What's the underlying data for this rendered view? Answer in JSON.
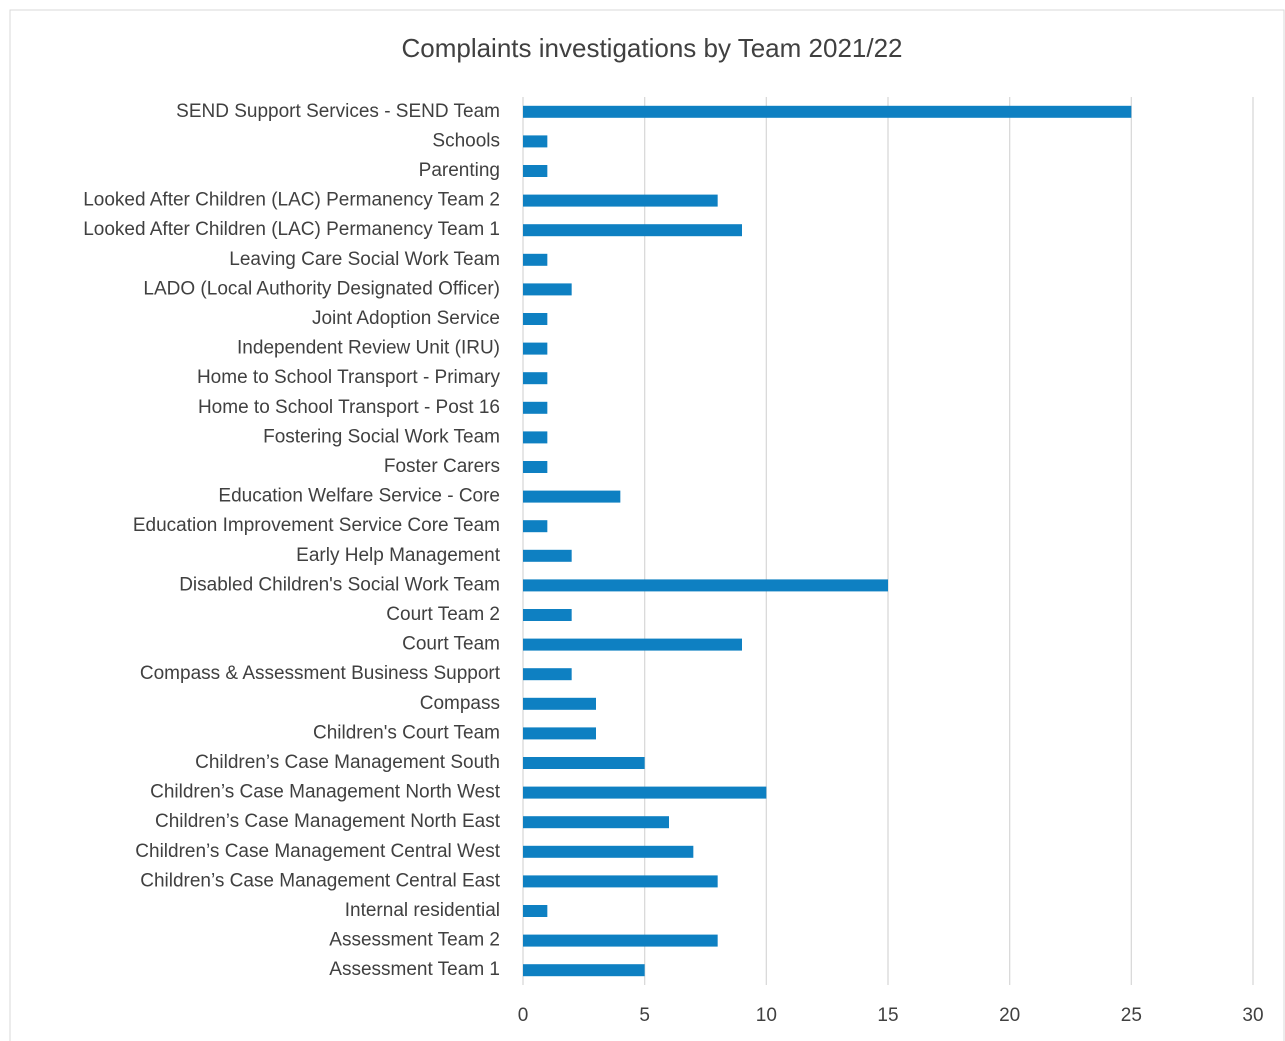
{
  "chart_data": {
    "type": "bar",
    "orientation": "horizontal",
    "title": "Complaints investigations by Team 2021/22",
    "categories": [
      "SEND Support Services - SEND Team",
      "Schools",
      "Parenting",
      "Looked After Children (LAC) Permanency Team 2",
      "Looked After Children (LAC) Permanency Team 1",
      "Leaving Care Social Work Team",
      "LADO (Local Authority Designated Officer)",
      "Joint Adoption Service",
      "Independent Review Unit (IRU)",
      "Home to School Transport - Primary",
      "Home to School Transport - Post 16",
      "Fostering Social Work Team",
      "Foster Carers",
      "Education Welfare Service - Core",
      "Education Improvement Service Core Team",
      "Early Help Management",
      "Disabled Children's Social Work Team",
      "Court Team 2",
      "Court Team",
      "Compass & Assessment Business Support",
      "Compass",
      "Children's Court Team",
      "Children’s Case Management South",
      "Children’s Case Management North West",
      "Children’s Case Management North East",
      "Children’s Case Management Central West",
      "Children’s Case Management Central East",
      "Internal residential",
      "Assessment Team 2",
      "Assessment Team 1"
    ],
    "values": [
      25,
      1,
      1,
      8,
      9,
      1,
      2,
      1,
      1,
      1,
      1,
      1,
      1,
      4,
      1,
      2,
      15,
      2,
      9,
      2,
      3,
      3,
      5,
      10,
      6,
      7,
      8,
      1,
      8,
      5
    ],
    "color": "#0e80c2",
    "xlim": [
      0,
      30
    ],
    "xticks": [
      0,
      5,
      10,
      15,
      20,
      25,
      30
    ],
    "grid": true
  }
}
